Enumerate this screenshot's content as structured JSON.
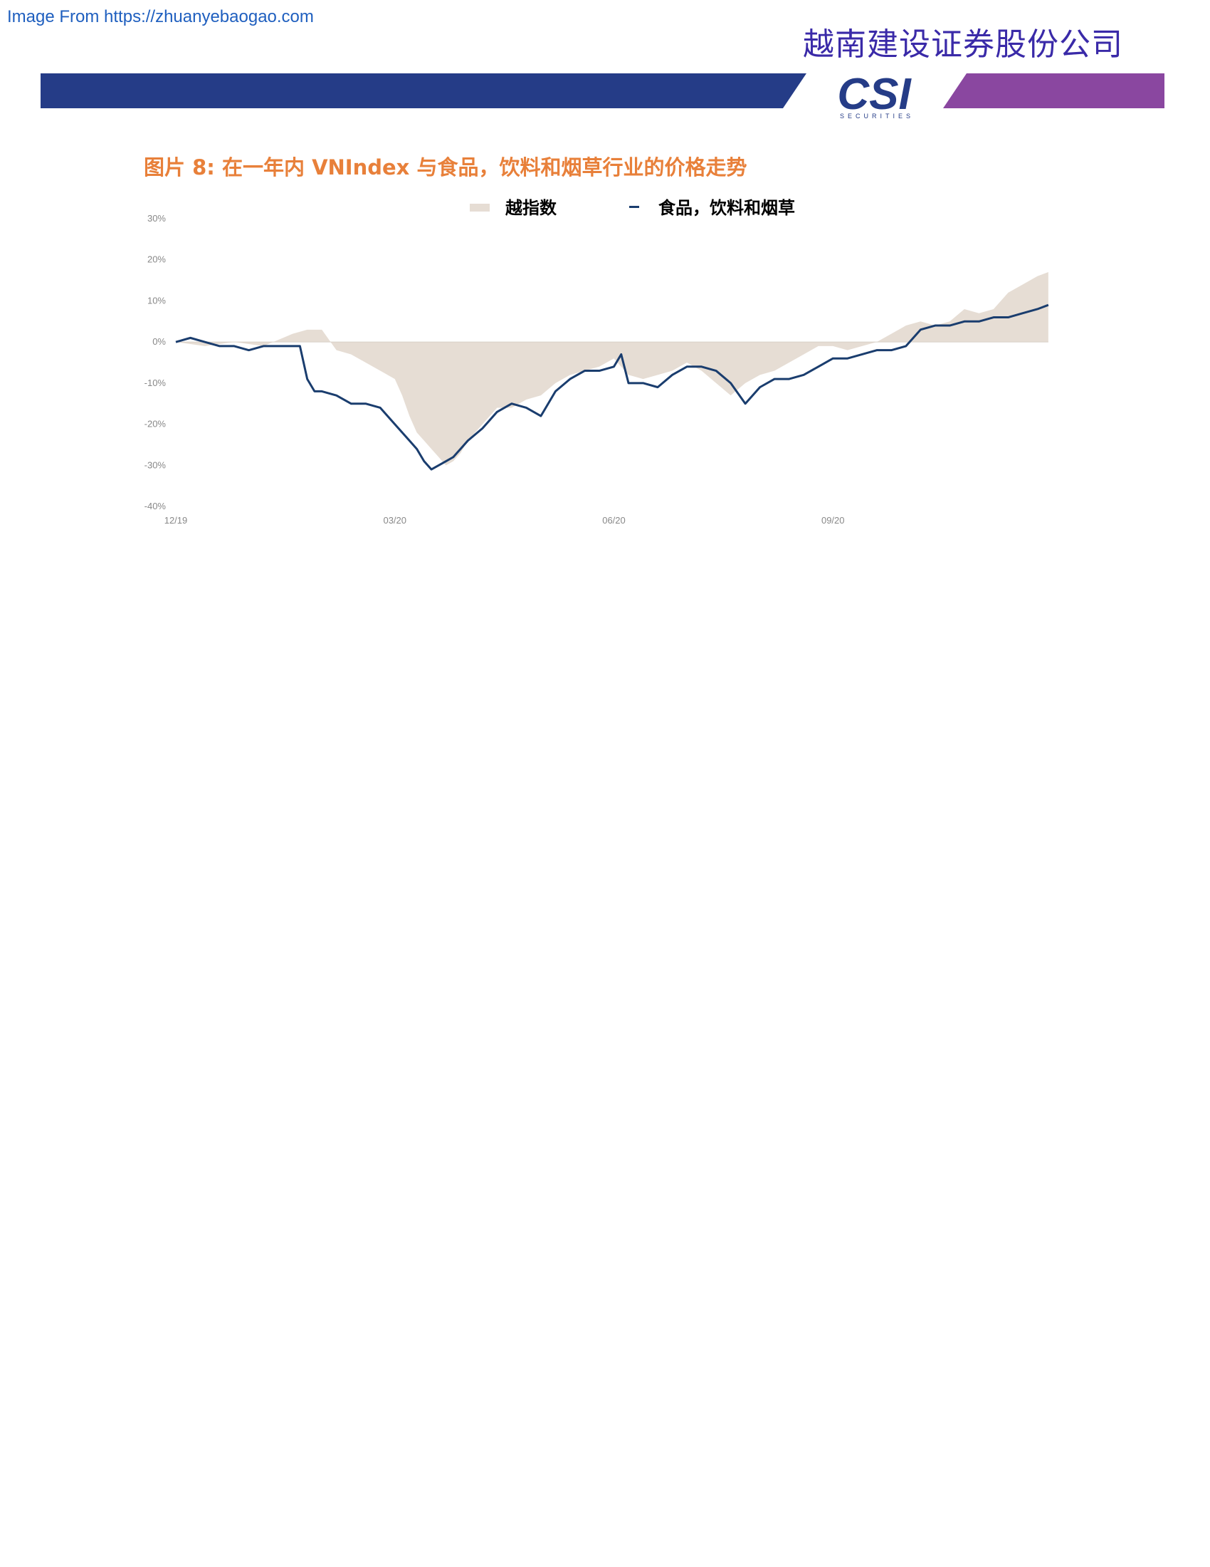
{
  "watermark": "Image From https://zhuanyebaogao.com",
  "header": {
    "company_name": "越南建设证券股份公司",
    "logo_text": "CSI",
    "logo_subtext": "SECURITIES",
    "colors": {
      "banner_blue": "#253c87",
      "banner_purple": "#8a47a0",
      "logo_blue": "#253c87"
    }
  },
  "figure": {
    "title": "图片 8: 在一年内 VNIndex 与食品，饮料和烟草行业的价格走势"
  },
  "chart_data": {
    "type": "area+line",
    "title": "",
    "xlabel": "",
    "ylabel": "",
    "ylim": [
      -40,
      30
    ],
    "yticks": [
      30,
      20,
      10,
      0,
      -10,
      -20,
      -30,
      -40
    ],
    "ytick_labels": [
      "30%",
      "20%",
      "10%",
      "0%",
      "-10%",
      "-20%",
      "-30%",
      "-40%"
    ],
    "xticks": [
      0,
      3,
      6,
      9
    ],
    "xtick_labels": [
      "12/19",
      "03/20",
      "06/20",
      "09/20"
    ],
    "xlim": [
      0,
      12
    ],
    "legend": {
      "placement": "top-center"
    },
    "grid": false,
    "series": [
      {
        "name": "越指数",
        "kind": "area",
        "color": "#e6ddd4",
        "x": [
          0,
          0.4,
          0.8,
          1.2,
          1.6,
          1.8,
          2.0,
          2.2,
          2.4,
          2.6,
          2.8,
          3.0,
          3.1,
          3.2,
          3.3,
          3.4,
          3.5,
          3.6,
          3.7,
          3.8,
          3.9,
          4.0,
          4.2,
          4.4,
          4.6,
          4.8,
          5.0,
          5.2,
          5.4,
          5.6,
          5.8,
          6.0,
          6.2,
          6.4,
          6.6,
          6.8,
          7.0,
          7.2,
          7.4,
          7.6,
          7.8,
          8.0,
          8.2,
          8.4,
          8.6,
          8.8,
          9.0,
          9.2,
          9.4,
          9.6,
          9.8,
          10.0,
          10.2,
          10.4,
          10.6,
          10.8,
          11.0,
          11.2,
          11.4,
          11.6,
          11.8,
          11.95
        ],
        "values": [
          0,
          -1,
          0,
          -1,
          2,
          3,
          3,
          -2,
          -3,
          -5,
          -7,
          -9,
          -13,
          -18,
          -22,
          -24,
          -26,
          -28,
          -30,
          -29,
          -27,
          -24,
          -20,
          -16,
          -16,
          -14,
          -13,
          -10,
          -8,
          -7,
          -6,
          -4,
          -8,
          -9,
          -8,
          -7,
          -5,
          -7,
          -10,
          -13,
          -10,
          -8,
          -7,
          -5,
          -3,
          -1,
          -1,
          -2,
          -1,
          0,
          2,
          4,
          5,
          4,
          5,
          8,
          7,
          8,
          12,
          14,
          16,
          17
        ]
      },
      {
        "name": "食品，饮料和烟草",
        "kind": "line",
        "color": "#1a3d6e",
        "x": [
          0,
          0.2,
          0.4,
          0.6,
          0.8,
          1.0,
          1.2,
          1.4,
          1.6,
          1.7,
          1.8,
          1.9,
          2.0,
          2.2,
          2.4,
          2.6,
          2.8,
          3.0,
          3.1,
          3.2,
          3.3,
          3.4,
          3.5,
          3.6,
          3.7,
          3.8,
          3.9,
          4.0,
          4.2,
          4.4,
          4.6,
          4.8,
          5.0,
          5.2,
          5.4,
          5.6,
          5.8,
          6.0,
          6.1,
          6.2,
          6.4,
          6.6,
          6.8,
          7.0,
          7.2,
          7.4,
          7.6,
          7.8,
          8.0,
          8.2,
          8.4,
          8.6,
          8.8,
          9.0,
          9.2,
          9.4,
          9.6,
          9.8,
          10.0,
          10.2,
          10.4,
          10.6,
          10.8,
          11.0,
          11.2,
          11.4,
          11.6,
          11.8,
          11.95
        ],
        "values": [
          0,
          1,
          0,
          -1,
          -1,
          -2,
          -1,
          -1,
          -1,
          -1,
          -9,
          -12,
          -12,
          -13,
          -15,
          -15,
          -16,
          -20,
          -22,
          -24,
          -26,
          -29,
          -31,
          -30,
          -29,
          -28,
          -26,
          -24,
          -21,
          -17,
          -15,
          -16,
          -18,
          -12,
          -9,
          -7,
          -7,
          -6,
          -3,
          -10,
          -10,
          -11,
          -8,
          -6,
          -6,
          -7,
          -10,
          -15,
          -11,
          -9,
          -9,
          -8,
          -6,
          -4,
          -4,
          -3,
          -2,
          -2,
          -1,
          3,
          4,
          4,
          5,
          5,
          6,
          6,
          7,
          8,
          9
        ]
      }
    ]
  }
}
